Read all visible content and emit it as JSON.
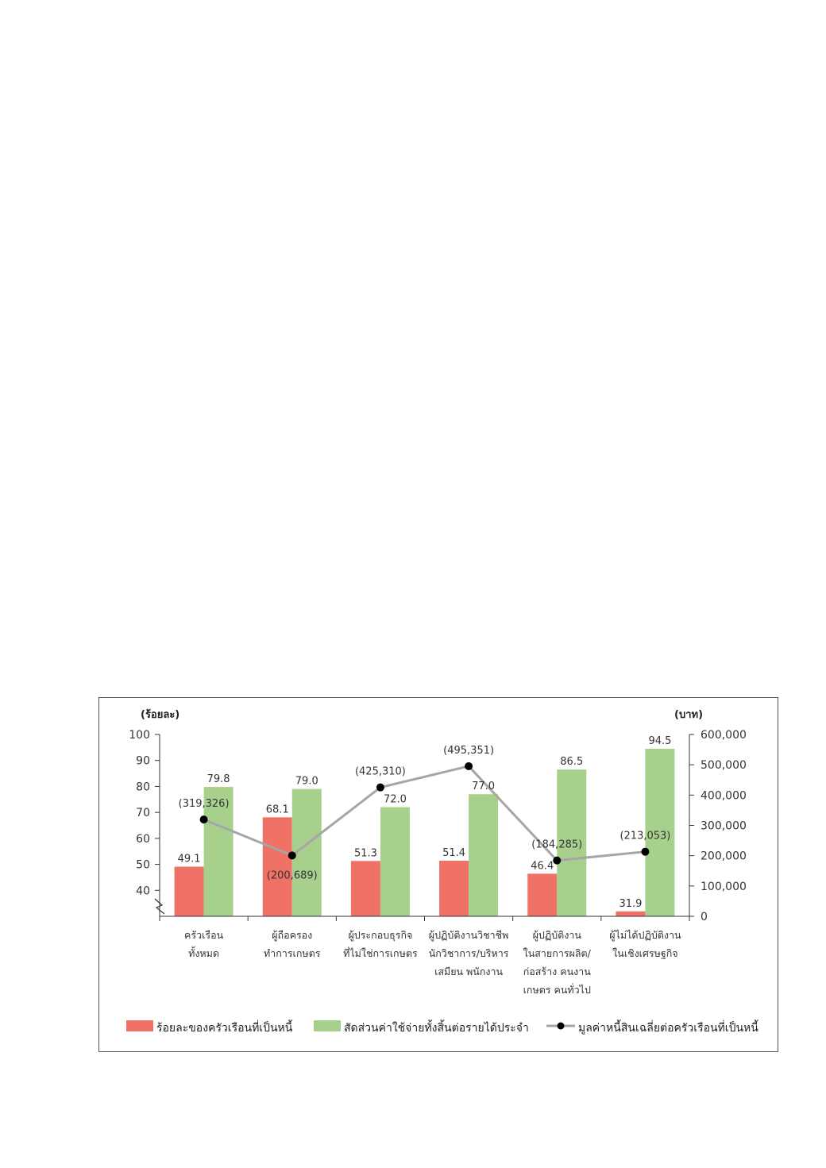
{
  "chart_data": {
    "type": "bar",
    "ylabel": "(ร้อยละ)",
    "y2label": "(บาท)",
    "ylim": [
      30,
      100
    ],
    "y2lim": [
      0,
      600000
    ],
    "y_ticks": [
      "100",
      "90",
      "80",
      "70",
      "60",
      "50",
      "40"
    ],
    "y2_ticks": [
      "600,000",
      "500,000",
      "400,000",
      "300,000",
      "200,000",
      "100,000",
      "0"
    ],
    "y_axis_break": true,
    "categories": [
      [
        "ครัวเรือน",
        "ทั้งหมด"
      ],
      [
        "ผู้ถือครอง",
        "ทำการเกษตร"
      ],
      [
        "ผู้ประกอบธุรกิจ",
        "ที่ไม่ใช่การเกษตร"
      ],
      [
        "ผู้ปฏิบัติงานวิชาชีพ",
        "นักวิชาการ/บริหาร",
        "เสมียน พนักงาน"
      ],
      [
        "ผู้ปฏิบัติงาน",
        "ในสายการผลิต/",
        "ก่อสร้าง คนงาน",
        "เกษตร คนทั่วไป"
      ],
      [
        "ผู้ไม่ได้ปฏิบัติงาน",
        "ในเชิงเศรษฐกิจ"
      ]
    ],
    "series": [
      {
        "name": "ร้อยละของครัวเรือนที่เป็นหนี้",
        "type": "bar",
        "axis": "left",
        "color": "#f07266",
        "values": [
          49.1,
          68.1,
          51.3,
          51.4,
          46.4,
          31.9
        ],
        "labels": [
          "49.1",
          "68.1",
          "51.3",
          "51.4",
          "46.4",
          "31.9"
        ]
      },
      {
        "name": "สัดส่วนค่าใช้จ่ายทั้งสิ้นต่อรายได้ประจำ",
        "type": "bar",
        "axis": "left",
        "color": "#a8d08d",
        "values": [
          79.8,
          79.0,
          72.0,
          77.0,
          86.5,
          94.5
        ],
        "labels": [
          "79.8",
          "79.0",
          "72.0",
          "77.0",
          "86.5",
          "94.5"
        ]
      },
      {
        "name": "มูลค่าหนี้สินเฉลี่ยต่อครัวเรือนที่เป็นหนี้",
        "type": "line",
        "axis": "right",
        "color": "#a6a6a6",
        "marker_color": "#000000",
        "values": [
          319326,
          200689,
          425310,
          495351,
          184285,
          213053
        ],
        "labels": [
          "(319,326)",
          "(200,689)",
          "(425,310)",
          "(495,351)",
          "(184,285)",
          "(213,053)"
        ]
      }
    ]
  }
}
